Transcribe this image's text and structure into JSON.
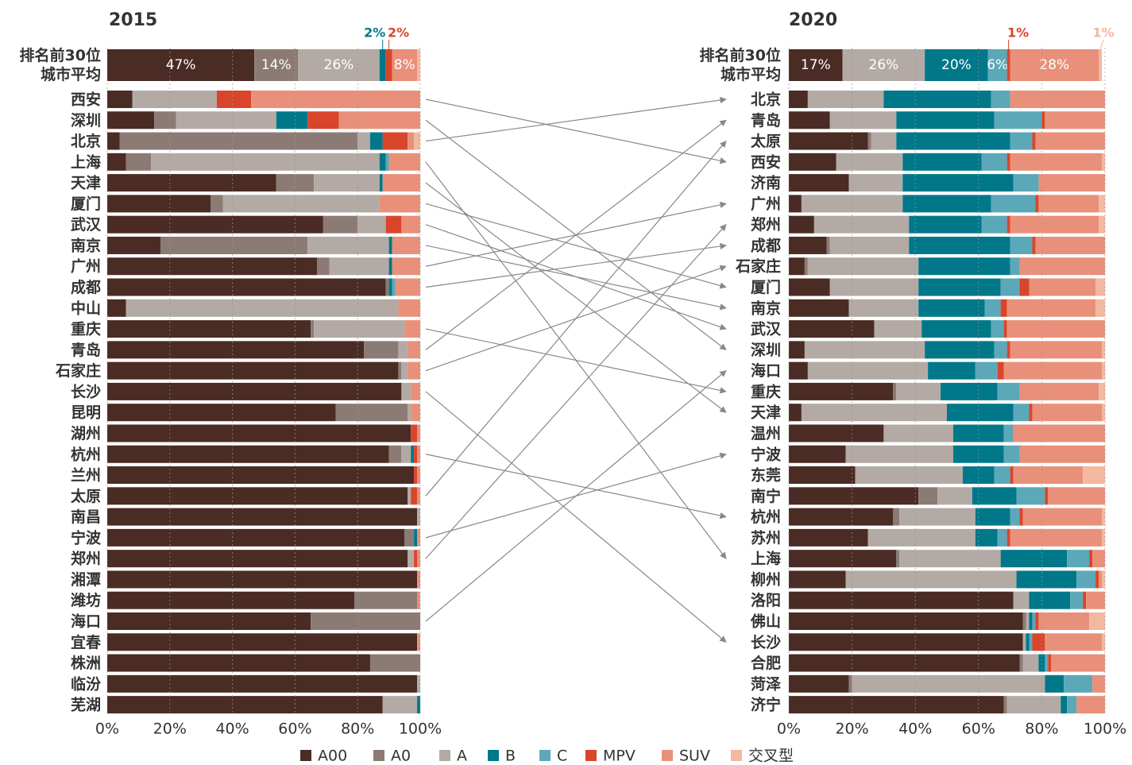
{
  "legend": [
    {
      "name": "A00",
      "color": "#4a2c24"
    },
    {
      "name": "A0",
      "color": "#8c7b74"
    },
    {
      "name": "A",
      "color": "#b3aaa5"
    },
    {
      "name": "B",
      "color": "#00788a"
    },
    {
      "name": "C",
      "color": "#5ba8b8"
    },
    {
      "name": "MPV",
      "color": "#d9452b"
    },
    {
      "name": "SUV",
      "color": "#e8907a"
    },
    {
      "name": "交叉型",
      "color": "#f2b8a0"
    }
  ],
  "chart_data": [
    {
      "type": "bar",
      "title": "2015",
      "xlim": [
        0,
        100
      ],
      "xticks": [
        {
          "value": 0,
          "label": "0%"
        },
        {
          "value": 20,
          "label": "20%"
        },
        {
          "value": 40,
          "label": "40%"
        },
        {
          "value": 60,
          "label": "60%"
        },
        {
          "value": 80,
          "label": "80%"
        },
        {
          "value": 100,
          "label": "100%"
        }
      ],
      "average": {
        "label": "排名前30位城市平均",
        "values": [
          47,
          14,
          26,
          2,
          0,
          2,
          8,
          1
        ],
        "value_labels": [
          "47%",
          "14%",
          "26%",
          "2%",
          null,
          "2%",
          "8%",
          null
        ]
      },
      "categories": [
        "西安",
        "深圳",
        "北京",
        "上海",
        "天津",
        "厦门",
        "武汉",
        "南京",
        "广州",
        "成都",
        "中山",
        "重庆",
        "青岛",
        "石家庄",
        "长沙",
        "昆明",
        "湖州",
        "杭州",
        "兰州",
        "太原",
        "南昌",
        "宁波",
        "郑州",
        "湘潭",
        "潍坊",
        "海口",
        "宜春",
        "株洲",
        "临汾",
        "芜湖"
      ],
      "series": [
        {
          "values": [
            8,
            15,
            4,
            6,
            54,
            33,
            69,
            17,
            67,
            89,
            6,
            65,
            82,
            93,
            94,
            73,
            97,
            90,
            98,
            96,
            99,
            95,
            96,
            99,
            79,
            65,
            99,
            84,
            99,
            88
          ]
        },
        {
          "values": [
            0,
            7,
            76,
            8,
            12,
            4,
            11,
            47,
            4,
            1,
            0,
            1,
            11,
            1,
            0,
            23,
            0,
            4,
            0,
            0,
            0,
            3,
            0,
            0,
            20,
            35,
            0,
            16,
            0,
            0
          ]
        },
        {
          "values": [
            27,
            32,
            4,
            73,
            21,
            50,
            9,
            26,
            19,
            0,
            87,
            29,
            3,
            2,
            3,
            1,
            0,
            3,
            0,
            1,
            1,
            0,
            2,
            0,
            0,
            0,
            0,
            0,
            1,
            11
          ]
        },
        {
          "values": [
            0,
            10,
            4,
            2,
            1,
            0,
            0,
            1,
            1,
            1,
            0,
            0,
            0,
            0,
            0,
            0,
            0,
            1,
            0,
            0,
            0,
            1,
            0,
            0,
            0,
            0,
            0,
            0,
            0,
            1
          ]
        },
        {
          "values": [
            0,
            0,
            0,
            1,
            0,
            0,
            0,
            0,
            0,
            1,
            0,
            0,
            0,
            0,
            0,
            0,
            0,
            0,
            0,
            0,
            0,
            0,
            0,
            0,
            0,
            0,
            0,
            0,
            0,
            0
          ]
        },
        {
          "values": [
            11,
            10,
            8,
            0,
            0,
            0,
            5,
            0,
            0,
            0,
            0,
            0,
            0,
            0,
            0,
            0,
            2,
            1,
            1,
            2,
            0,
            0,
            1,
            0,
            0,
            0,
            0,
            0,
            0,
            0
          ]
        },
        {
          "values": [
            54,
            26,
            2,
            10,
            12,
            13,
            6,
            9,
            9,
            8,
            7,
            5,
            4,
            4,
            3,
            3,
            1,
            1,
            1,
            1,
            0,
            1,
            1,
            1,
            1,
            0,
            1,
            0,
            0,
            0
          ]
        },
        {
          "values": [
            0,
            0,
            2,
            0,
            0,
            0,
            0,
            0,
            0,
            0,
            0,
            0,
            0,
            0,
            0,
            0,
            0,
            0,
            0,
            0,
            0,
            0,
            0,
            0,
            0,
            0,
            0,
            0,
            0,
            0
          ]
        }
      ]
    },
    {
      "type": "bar",
      "title": "2020",
      "xlim": [
        0,
        100
      ],
      "xticks": [
        {
          "value": 0,
          "label": "0%"
        },
        {
          "value": 20,
          "label": "20%"
        },
        {
          "value": 40,
          "label": "40%"
        },
        {
          "value": 60,
          "label": "60%"
        },
        {
          "value": 80,
          "label": "80%"
        },
        {
          "value": 100,
          "label": "100%"
        }
      ],
      "average": {
        "label": "排名前30位城市平均",
        "values": [
          17,
          0,
          26,
          20,
          6,
          1,
          28,
          1
        ],
        "value_labels": [
          "17%",
          null,
          "26%",
          "20%",
          "6%",
          "1%",
          "28%",
          "1%"
        ]
      },
      "categories": [
        "北京",
        "青岛",
        "太原",
        "西安",
        "济南",
        "广州",
        "郑州",
        "成都",
        "石家庄",
        "厦门",
        "南京",
        "武汉",
        "深圳",
        "海口",
        "重庆",
        "天津",
        "温州",
        "宁波",
        "东莞",
        "南宁",
        "杭州",
        "苏州",
        "上海",
        "柳州",
        "洛阳",
        "佛山",
        "长沙",
        "合肥",
        "菏泽",
        "济宁"
      ],
      "series": [
        {
          "values": [
            6,
            13,
            25,
            15,
            19,
            4,
            8,
            12,
            5,
            13,
            19,
            27,
            5,
            6,
            33,
            4,
            30,
            18,
            21,
            41,
            33,
            25,
            34,
            18,
            71,
            74,
            74,
            73,
            19,
            68
          ]
        },
        {
          "values": [
            0,
            0,
            1,
            0,
            0,
            0,
            0,
            1,
            1,
            0,
            0,
            0,
            0,
            0,
            1,
            0,
            0,
            0,
            0,
            6,
            2,
            0,
            1,
            0,
            0,
            1,
            0,
            1,
            1,
            1
          ]
        },
        {
          "values": [
            24,
            21,
            8,
            21,
            17,
            32,
            30,
            25,
            35,
            28,
            22,
            15,
            38,
            38,
            14,
            46,
            22,
            34,
            34,
            11,
            24,
            34,
            32,
            54,
            5,
            1,
            1,
            5,
            61,
            17
          ]
        },
        {
          "values": [
            34,
            31,
            36,
            25,
            35,
            28,
            23,
            32,
            29,
            26,
            21,
            22,
            22,
            15,
            18,
            21,
            16,
            16,
            10,
            14,
            11,
            7,
            21,
            19,
            13,
            1,
            1,
            2,
            6,
            2
          ]
        },
        {
          "values": [
            6,
            15,
            7,
            8,
            8,
            14,
            8,
            7,
            3,
            6,
            5,
            4,
            4,
            7,
            7,
            5,
            3,
            5,
            5,
            9,
            3,
            3,
            7,
            6,
            4,
            1,
            1,
            1,
            9,
            3
          ]
        },
        {
          "values": [
            0,
            1,
            1,
            1,
            0,
            1,
            1,
            1,
            0,
            3,
            2,
            1,
            1,
            2,
            0,
            1,
            0,
            0,
            1,
            1,
            1,
            1,
            1,
            1,
            1,
            1,
            4,
            1,
            0,
            0
          ]
        },
        {
          "values": [
            30,
            19,
            22,
            29,
            21,
            19,
            28,
            22,
            27,
            21,
            28,
            31,
            29,
            31,
            25,
            22,
            29,
            27,
            22,
            18,
            25,
            29,
            4,
            1,
            6,
            16,
            18,
            17,
            4,
            9
          ]
        },
        {
          "values": [
            0,
            0,
            0,
            1,
            0,
            2,
            2,
            0,
            0,
            3,
            3,
            0,
            1,
            1,
            2,
            1,
            0,
            0,
            7,
            0,
            1,
            1,
            0,
            1,
            0,
            5,
            1,
            0,
            0,
            0
          ]
        }
      ]
    }
  ]
}
